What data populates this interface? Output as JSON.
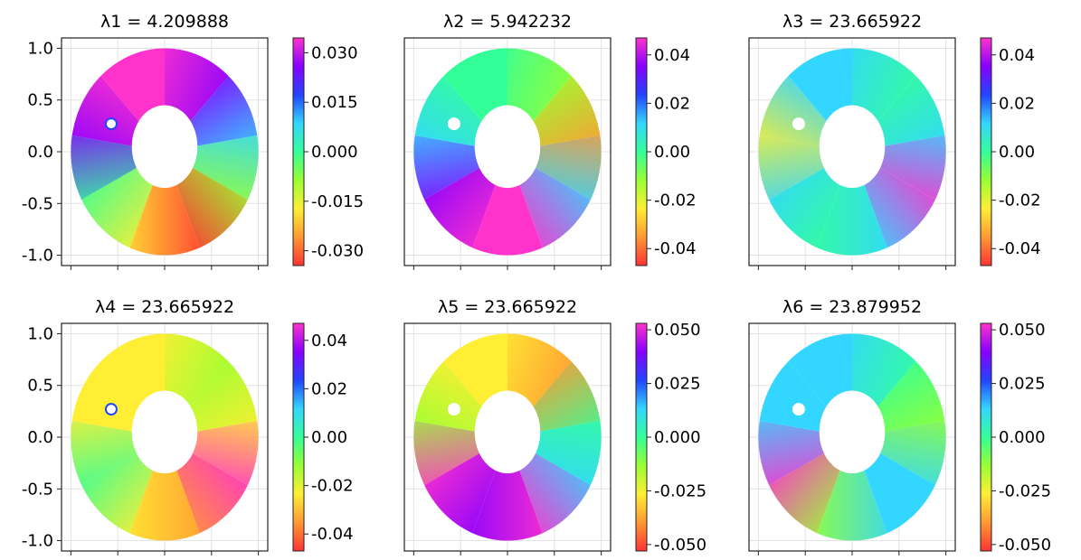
{
  "chart_data": [
    {
      "type": "heatmap",
      "title": "λ1 = 4.209888",
      "xlabel": "",
      "ylabel": "",
      "xlim": [
        -1.1,
        1.1
      ],
      "ylim": [
        -1.1,
        1.1
      ],
      "y_ticks": [
        "1.0",
        "0.5",
        "0.0",
        "-0.5",
        "-1.0"
      ],
      "colorbar": {
        "min": -0.0345,
        "max": 0.0345,
        "ticks": [
          0.03,
          0.015,
          0.0,
          -0.015,
          -0.03
        ],
        "tick_labels": [
          "0.030",
          "0.015",
          "0.000",
          "-0.015",
          "-0.030"
        ]
      },
      "grid": true
    },
    {
      "type": "heatmap",
      "title": "λ2 = 5.942232",
      "xlabel": "",
      "ylabel": "",
      "xlim": [
        -1.1,
        1.1
      ],
      "ylim": [
        -1.1,
        1.1
      ],
      "y_ticks": [],
      "colorbar": {
        "min": -0.047,
        "max": 0.047,
        "ticks": [
          0.04,
          0.02,
          0.0,
          -0.02,
          -0.04
        ],
        "tick_labels": [
          "0.04",
          "0.02",
          "0.00",
          "-0.02",
          "-0.04"
        ]
      },
      "grid": true
    },
    {
      "type": "heatmap",
      "title": "λ3 = 23.665922",
      "xlabel": "",
      "ylabel": "",
      "xlim": [
        -1.1,
        1.1
      ],
      "ylim": [
        -1.1,
        1.1
      ],
      "y_ticks": [],
      "colorbar": {
        "min": -0.047,
        "max": 0.047,
        "ticks": [
          0.04,
          0.02,
          0.0,
          -0.02,
          -0.04
        ],
        "tick_labels": [
          "0.04",
          "0.02",
          "0.00",
          "-0.02",
          "-0.04"
        ]
      },
      "grid": true
    },
    {
      "type": "heatmap",
      "title": "λ4 = 23.665922",
      "xlabel": "",
      "ylabel": "",
      "xlim": [
        -1.1,
        1.1
      ],
      "ylim": [
        -1.1,
        1.1
      ],
      "y_ticks": [
        "1.0",
        "0.5",
        "0.0",
        "-0.5",
        "-1.0"
      ],
      "colorbar": {
        "min": -0.047,
        "max": 0.047,
        "ticks": [
          0.04,
          0.02,
          0.0,
          -0.02,
          -0.04
        ],
        "tick_labels": [
          "0.04",
          "0.02",
          "0.00",
          "-0.02",
          "-0.04"
        ]
      },
      "grid": true
    },
    {
      "type": "heatmap",
      "title": "λ5 = 23.665922",
      "xlabel": "",
      "ylabel": "",
      "xlim": [
        -1.1,
        1.1
      ],
      "ylim": [
        -1.1,
        1.1
      ],
      "y_ticks": [],
      "colorbar": {
        "min": -0.053,
        "max": 0.053,
        "ticks": [
          0.05,
          0.025,
          0.0,
          -0.025,
          -0.05
        ],
        "tick_labels": [
          "0.050",
          "0.025",
          "0.000",
          "-0.025",
          "-0.050"
        ]
      },
      "grid": true
    },
    {
      "type": "heatmap",
      "title": "λ6 = 23.879952",
      "xlabel": "",
      "ylabel": "",
      "xlim": [
        -1.1,
        1.1
      ],
      "ylim": [
        -1.1,
        1.1
      ],
      "y_ticks": [],
      "colorbar": {
        "min": -0.053,
        "max": 0.053,
        "ticks": [
          0.05,
          0.025,
          0.0,
          -0.025,
          -0.05
        ],
        "tick_labels": [
          "0.050",
          "0.025",
          "0.000",
          "-0.025",
          "-0.050"
        ]
      },
      "grid": true
    }
  ],
  "colormap": {
    "name": "hsv-like",
    "stops_high_to_low": [
      "#ff33cc",
      "#8800ff",
      "#2244ff",
      "#33d6ff",
      "#33ff99",
      "#99ff33",
      "#ffee33",
      "#ff9933",
      "#ff3333"
    ]
  }
}
